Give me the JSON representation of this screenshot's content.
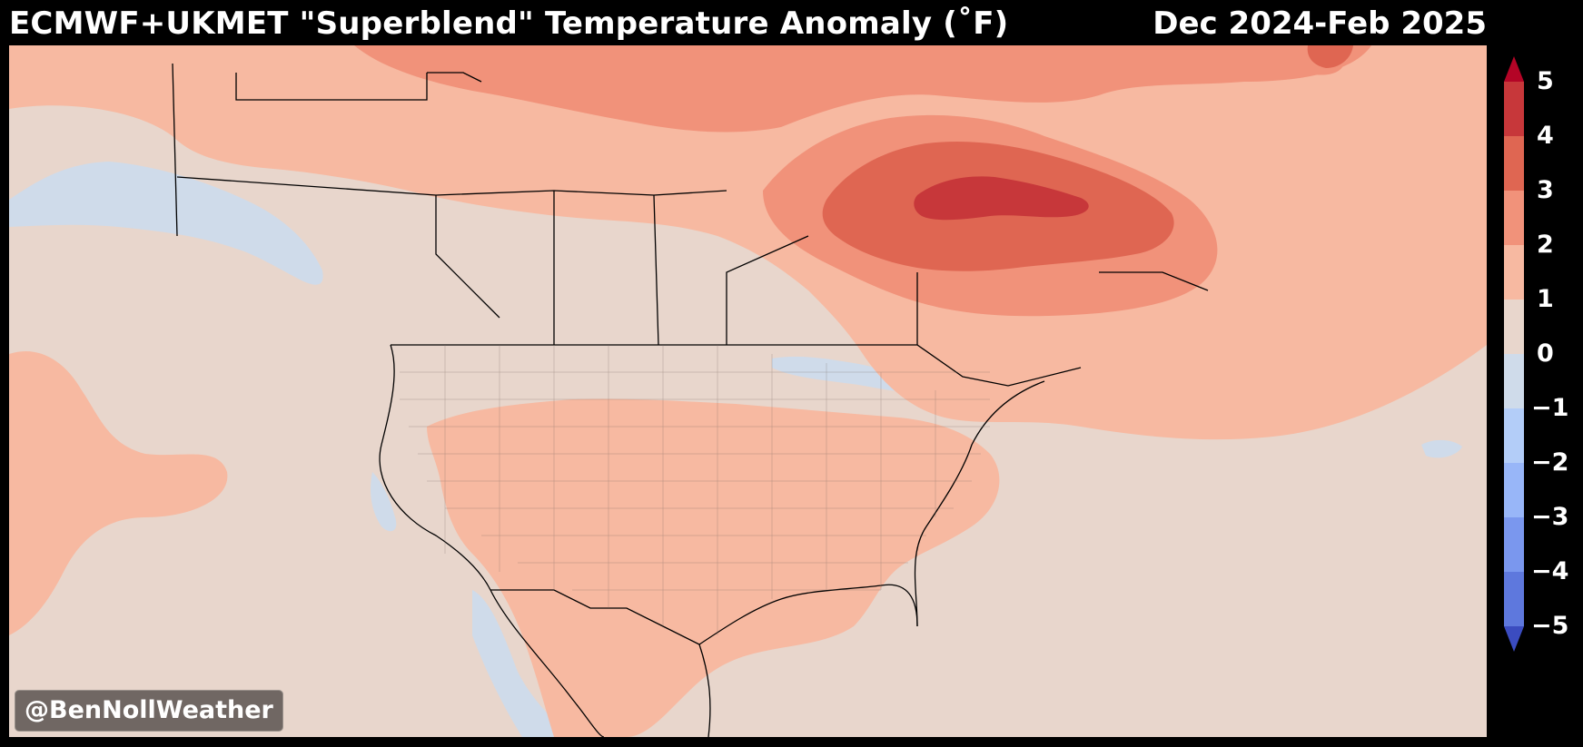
{
  "title": {
    "main": "ECMWF+UKMET \"Superblend\" Temperature Anomaly (˚F)",
    "period": "Dec 2024-Feb 2025"
  },
  "watermark": "@BenNollWeather",
  "colorbar": {
    "unit": "˚F",
    "ticks": [
      "5",
      "4",
      "3",
      "2",
      "1",
      "0",
      "−1",
      "−2",
      "−3",
      "−4",
      "−5"
    ],
    "bins": [
      {
        "range": "4 to 5",
        "color": "#c7373a"
      },
      {
        "range": "3 to 4",
        "color": "#df6652"
      },
      {
        "range": "2 to 3",
        "color": "#f1927a"
      },
      {
        "range": "1 to 2",
        "color": "#f7b9a1"
      },
      {
        "range": "0 to 1",
        "color": "#e8d6cc"
      },
      {
        "range": "-1 to 0",
        "color": "#cfdbea"
      },
      {
        "range": "-2 to -1",
        "color": "#b3cdf8"
      },
      {
        "range": "-3 to -2",
        "color": "#98b6f8"
      },
      {
        "range": "-4 to -3",
        "color": "#7a97ee"
      },
      {
        "range": "-5 to -4",
        "color": "#5e78dd"
      }
    ],
    "over_color": "#b40426",
    "under_color": "#3b4cc0"
  },
  "map": {
    "land_color_neutral": "#e8d6cc",
    "warm_1_2": "#f7b9a1",
    "warm_2_3": "#f1927a",
    "warm_3_4": "#df6652",
    "warm_4_5": "#c7373a",
    "cool_0_1": "#cfdbea",
    "boundary_color": "#000000"
  }
}
